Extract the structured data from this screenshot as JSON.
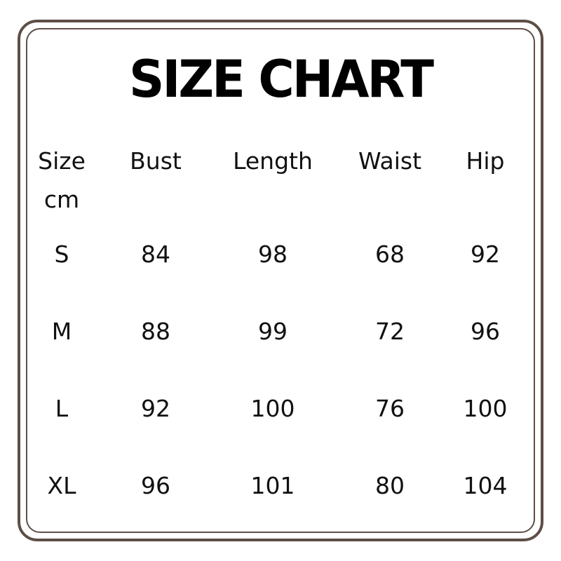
{
  "title": "SIZE CHART",
  "border_color": "#5e4e47",
  "table": {
    "headers": [
      "Size",
      "Bust",
      "Length",
      "Waist",
      "Hip"
    ],
    "unit": "cm",
    "rows": [
      [
        "S",
        "84",
        "98",
        "68",
        "92"
      ],
      [
        "M",
        "88",
        "99",
        "72",
        "96"
      ],
      [
        "L",
        "92",
        "100",
        "76",
        "100"
      ],
      [
        "XL",
        "96",
        "101",
        "80",
        "104"
      ]
    ]
  }
}
